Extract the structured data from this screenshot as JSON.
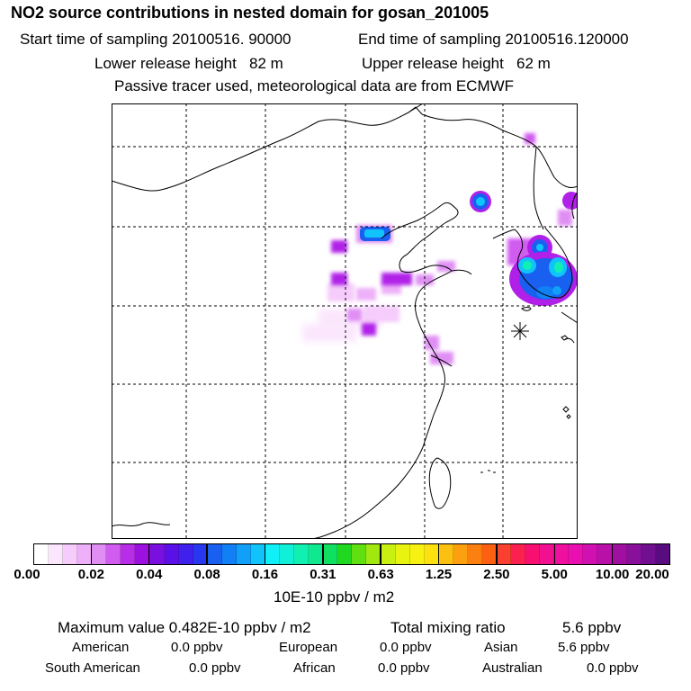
{
  "title": "NO2 source contributions in nested domain for gosan_201005",
  "sampling": {
    "start": "Start time of sampling 20100516. 90000",
    "end": "End time of sampling 20100516.120000"
  },
  "release": {
    "lower": "Lower release height   82 m",
    "upper": "Upper release height   62 m"
  },
  "note": "Passive tracer used, meteorological data are from ECMWF",
  "colorbar": {
    "unit": "10E-10 ppbv / m2",
    "tick_labels": [
      "0.00",
      "0.02",
      "0.04",
      "0.08",
      "0.16",
      "0.31",
      "0.63",
      "1.25",
      "2.50",
      "5.00",
      "10.00",
      "20.00"
    ],
    "colors": [
      "#ffffff",
      "#fbe6fd",
      "#f5ccfb",
      "#eeb0f8",
      "#e08ef4",
      "#d05cf0",
      "#b82ee8",
      "#9c10e0",
      "#7a10e0",
      "#5a10e6",
      "#4020ec",
      "#2838f0",
      "#1a60f0",
      "#1080f4",
      "#10a0f8",
      "#10c4fb",
      "#10f0f8",
      "#10f0d8",
      "#10f0b0",
      "#10e890",
      "#10e060",
      "#20d820",
      "#60e010",
      "#a0e810",
      "#c8f010",
      "#e8f410",
      "#f8f010",
      "#fce010",
      "#fcc010",
      "#fca010",
      "#fc8010",
      "#fc6010",
      "#fc4030",
      "#fc2050",
      "#f81070",
      "#f01090",
      "#f010a0",
      "#e810b0",
      "#d010b0",
      "#b810a8",
      "#a010a0",
      "#88109a",
      "#701090",
      "#580c80"
    ]
  },
  "summary": {
    "max_label": "Maximum value  0.482E-10 ppbv / m2",
    "total_label": "Total mixing ratio",
    "total_value": "5.6 ppbv",
    "regions": [
      {
        "name": "American",
        "value": "0.0 ppbv"
      },
      {
        "name": "European",
        "value": "0.0 ppbv"
      },
      {
        "name": "Asian",
        "value": "5.6 ppbv"
      },
      {
        "name": "South American",
        "value": "0.0 ppbv"
      },
      {
        "name": "African",
        "value": "0.0 ppbv"
      },
      {
        "name": "Australian",
        "value": "0.0 ppbv"
      }
    ]
  },
  "map": {
    "receptor_marker": "receptor-star",
    "plume_colors": {
      "light": "#f5ccfb",
      "mid": "#e08ef4",
      "violet": "#b020e8",
      "blue": "#1a60f0",
      "cyan": "#10c4fb",
      "green": "#10f0b0"
    }
  }
}
